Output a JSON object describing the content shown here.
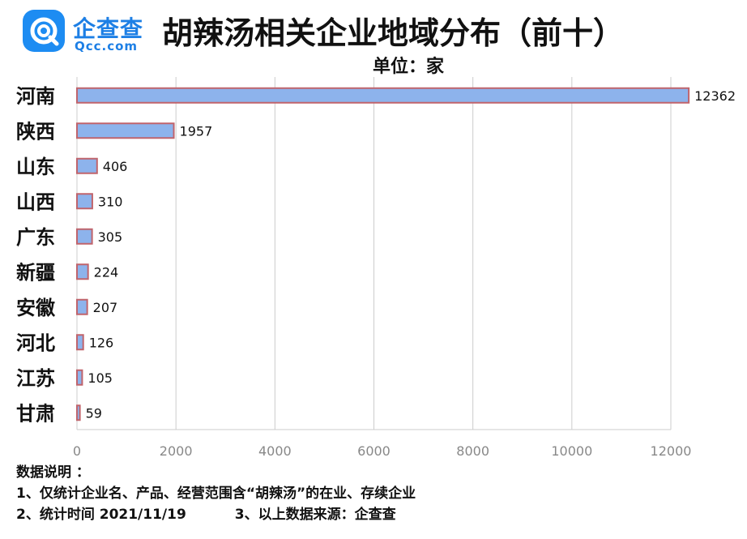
{
  "logo": {
    "name": "企查查",
    "sub": "Qcc.com"
  },
  "title": "胡辣汤相关企业地域分布（前十）",
  "unit": "单位：家",
  "colors": {
    "bar_fill": "#8db3ec",
    "bar_stroke": "#c0646c",
    "axis": "#cccccc",
    "tick_text": "#888888"
  },
  "chart_data": {
    "type": "bar",
    "orientation": "horizontal",
    "categories": [
      "河南",
      "陕西",
      "山东",
      "山西",
      "广东",
      "新疆",
      "安徽",
      "河北",
      "江苏",
      "甘肃"
    ],
    "values": [
      12362,
      1957,
      406,
      310,
      305,
      224,
      207,
      126,
      105,
      59
    ],
    "xlim": [
      0,
      12000
    ],
    "xticks": [
      0,
      2000,
      4000,
      6000,
      8000,
      10000,
      12000
    ],
    "grid": true
  },
  "notes": {
    "heading": "数据说明 ：",
    "line1": "1、仅统计企业名、产品、经营范围含“胡辣汤”的在业、存续企业",
    "line2a": "2、统计时间  2021/11/19",
    "line2b": "3、以上数据来源：企查查"
  }
}
